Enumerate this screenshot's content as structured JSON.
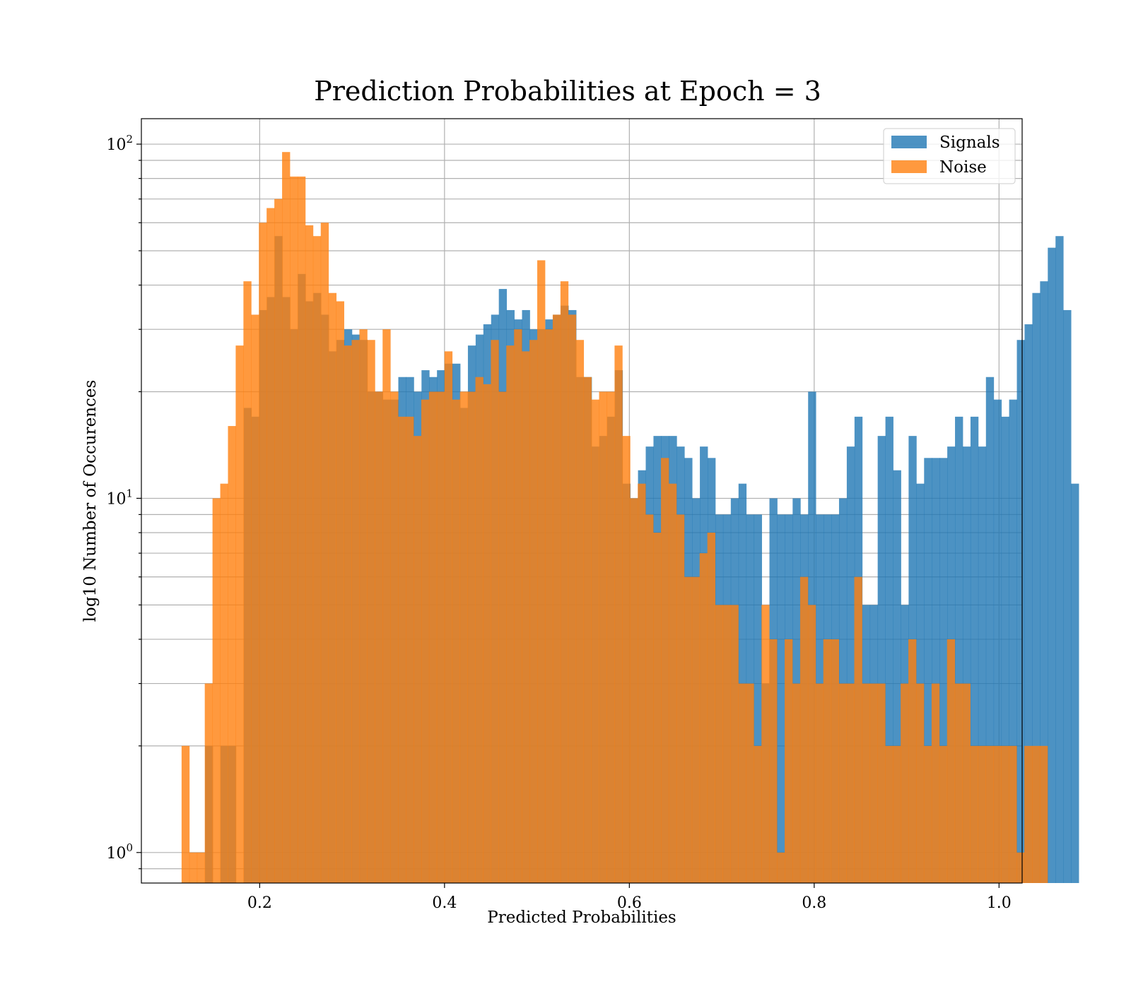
{
  "chart_data": {
    "type": "bar",
    "histogram": true,
    "title": "Prediction Probabilities at Epoch = 3",
    "xlabel": "Predicted Probabilities",
    "ylabel": "log10 Number of Occurences",
    "xlim": [
      0.072,
      1.025
    ],
    "ylim": [
      0.82,
      118
    ],
    "yscale": "log",
    "grid": true,
    "legend_position": "top-right",
    "x_ticks": [
      "0.2",
      "0.4",
      "0.6",
      "0.8",
      "1.0"
    ],
    "x_tick_values": [
      0.2,
      0.4,
      0.6,
      0.8,
      1.0
    ],
    "y_ticks": [
      {
        "base": "10",
        "exp": "0",
        "value": 1
      },
      {
        "base": "10",
        "exp": "1",
        "value": 10
      },
      {
        "base": "10",
        "exp": "2",
        "value": 100
      }
    ],
    "series": [
      {
        "name": "Signals",
        "color": "#1f77b4",
        "opacity": 0.8,
        "bin_start": 0.1325,
        "bin_width": 0.008366,
        "values": [
          0,
          2,
          0,
          2,
          2,
          0,
          18,
          17,
          34,
          37,
          55,
          37,
          30,
          43,
          36,
          38,
          33,
          26,
          28,
          30,
          29,
          28,
          20,
          20,
          19,
          19,
          22,
          22,
          20,
          23,
          22,
          23,
          24,
          24,
          18,
          27,
          29,
          31,
          33,
          39,
          34,
          32,
          34,
          30,
          30,
          32,
          33,
          35,
          34,
          22,
          22,
          14,
          15,
          17,
          23,
          11,
          10,
          12,
          14,
          15,
          15,
          15,
          14,
          13,
          10,
          14,
          13,
          9,
          9,
          10,
          11,
          9,
          9,
          3,
          10,
          9,
          9,
          10,
          9,
          20,
          9,
          9,
          9,
          10,
          14,
          17,
          5,
          5,
          15,
          17,
          12,
          5,
          15,
          11,
          13,
          13,
          13,
          14,
          17,
          14,
          17,
          14,
          22,
          19,
          17,
          19,
          28,
          31,
          38,
          41,
          51,
          55,
          34,
          11
        ]
      },
      {
        "name": "Noise",
        "color": "#ff7f0e",
        "opacity": 0.8,
        "bin_start": 0.1155,
        "bin_width": 0.008366,
        "values": [
          2,
          1,
          1,
          3,
          10,
          11,
          16,
          27,
          41,
          33,
          60,
          66,
          70,
          95,
          81,
          81,
          59,
          55,
          60,
          38,
          36,
          27,
          28,
          30,
          28,
          20,
          30,
          20,
          17,
          17,
          15,
          19,
          20,
          20,
          26,
          19,
          20,
          20,
          22,
          21,
          28,
          20,
          27,
          30,
          26,
          28,
          47,
          30,
          33,
          41,
          33,
          28,
          22,
          19,
          20,
          20,
          27,
          15,
          10,
          11,
          9,
          8,
          13,
          11,
          9,
          6,
          6,
          7,
          8,
          5,
          5,
          5,
          3,
          3,
          2,
          5,
          4,
          1,
          4,
          3,
          6,
          5,
          3,
          4,
          4,
          3,
          3,
          6,
          3,
          3,
          3,
          2,
          2,
          3,
          4,
          3,
          2,
          3,
          2,
          4,
          3,
          3,
          2,
          2,
          2,
          2,
          2,
          2,
          1,
          2,
          2,
          2
        ]
      }
    ]
  }
}
